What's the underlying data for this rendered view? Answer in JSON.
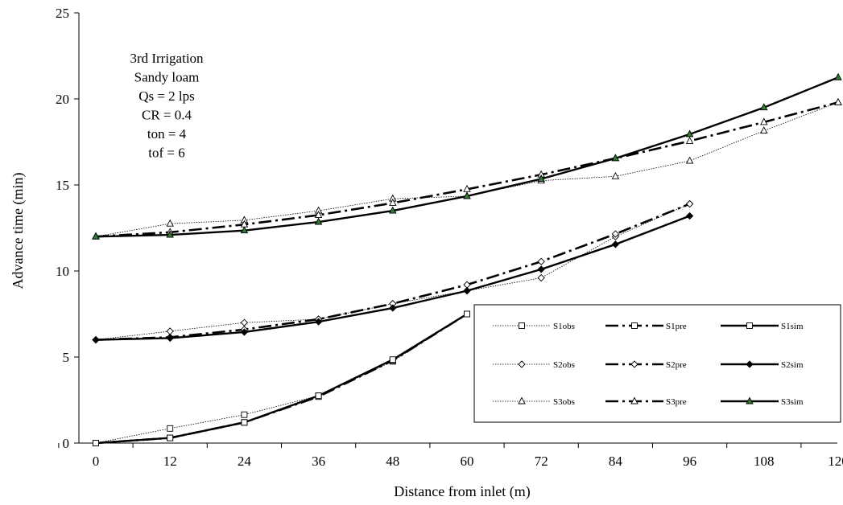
{
  "chart_data": {
    "type": "line",
    "xlabel": "Distance from inlet (m)",
    "ylabel": "Advance time (min)",
    "xlim": [
      0,
      120
    ],
    "ylim": [
      0,
      25
    ],
    "x_ticks": [
      "0",
      "12",
      "24",
      "36",
      "48",
      "60",
      "72",
      "84",
      "96",
      "108",
      "120"
    ],
    "y_ticks": [
      "0",
      "5",
      "10",
      "15",
      "20",
      "25"
    ],
    "grid": false,
    "legend_position": "bottom-right",
    "annotation": [
      "3rd Irrigation",
      "Sandy loam",
      "Qs = 2 lps",
      "CR =  0.4",
      "ton = 4",
      "tof = 6"
    ],
    "series": [
      {
        "name": "S1obs",
        "style": "dotted",
        "marker": "square-open",
        "x": [
          0,
          12,
          24,
          36,
          48,
          60
        ],
        "y": [
          0,
          0.85,
          1.65,
          2.75,
          4.75,
          7.5
        ]
      },
      {
        "name": "S1pre",
        "style": "dashdot",
        "marker": "square-open",
        "x": [
          0,
          12,
          24,
          36,
          48,
          60
        ],
        "y": [
          0,
          0.3,
          1.2,
          2.7,
          4.8,
          7.5
        ]
      },
      {
        "name": "S1sim",
        "style": "solid",
        "marker": "square-open",
        "x": [
          0,
          12,
          24,
          36,
          48,
          60
        ],
        "y": [
          0,
          0.3,
          1.2,
          2.75,
          4.85,
          7.5
        ]
      },
      {
        "name": "S2obs",
        "style": "dotted",
        "marker": "diamond-open",
        "x": [
          0,
          12,
          24,
          36,
          48,
          60,
          72,
          84,
          96
        ],
        "y": [
          6,
          6.5,
          7.0,
          7.2,
          8.1,
          8.85,
          9.6,
          12.0,
          13.9
        ]
      },
      {
        "name": "S2pre",
        "style": "dashdot",
        "marker": "diamond-open",
        "x": [
          0,
          12,
          24,
          36,
          48,
          60,
          72,
          84,
          96
        ],
        "y": [
          6,
          6.15,
          6.6,
          7.2,
          8.1,
          9.2,
          10.55,
          12.15,
          13.9
        ]
      },
      {
        "name": "S2sim",
        "style": "solid",
        "marker": "diamond-filled",
        "x": [
          0,
          12,
          24,
          36,
          48,
          60,
          72,
          84,
          96
        ],
        "y": [
          6,
          6.1,
          6.45,
          7.05,
          7.85,
          8.85,
          10.1,
          11.55,
          13.2
        ]
      },
      {
        "name": "S3obs",
        "style": "dotted",
        "marker": "triangle-open",
        "x": [
          0,
          12,
          24,
          36,
          48,
          60,
          72,
          84,
          96,
          108,
          120
        ],
        "y": [
          12,
          12.75,
          12.95,
          13.5,
          14.2,
          14.35,
          15.25,
          15.5,
          16.4,
          18.15,
          19.8
        ]
      },
      {
        "name": "S3pre",
        "style": "dashdot",
        "marker": "triangle-open",
        "x": [
          0,
          12,
          24,
          36,
          48,
          60,
          72,
          84,
          96,
          108,
          120
        ],
        "y": [
          12,
          12.25,
          12.7,
          13.25,
          13.95,
          14.75,
          15.6,
          16.55,
          17.55,
          18.65,
          19.8
        ]
      },
      {
        "name": "S3sim",
        "style": "solid",
        "marker": "triangle-filled",
        "x": [
          0,
          12,
          24,
          36,
          48,
          60,
          72,
          84,
          96,
          108,
          120
        ],
        "y": [
          12,
          12.1,
          12.35,
          12.85,
          13.5,
          14.35,
          15.35,
          16.55,
          17.95,
          19.5,
          21.25
        ]
      }
    ]
  },
  "colors": {
    "line": "#000000",
    "marker_fill_s3sim": "#2e7d32",
    "background": "#ffffff"
  }
}
